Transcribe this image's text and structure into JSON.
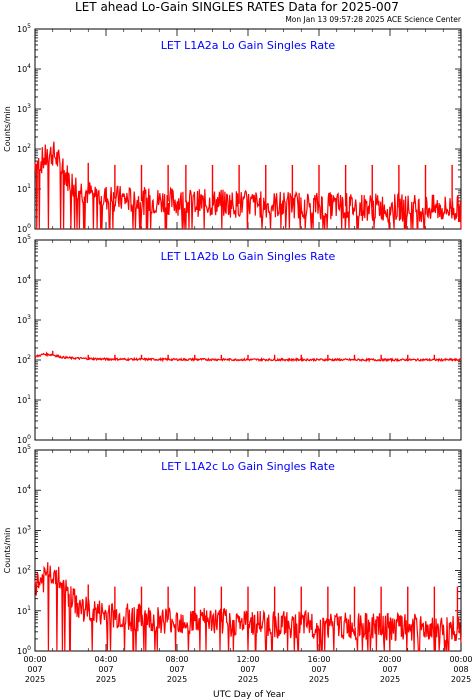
{
  "header": {
    "title": "LET ahead Lo-Gain SINGLES RATES Data for 2025-007",
    "timestamp": "Mon Jan 13 09:57:28 2025 ACE Science Center"
  },
  "colors": {
    "series": "#ff0000",
    "panel_title": "#0000ff",
    "axis": "#000000"
  },
  "chart_data": [
    {
      "type": "line",
      "title": "LET L1A2a Lo Gain Singles Rate",
      "ylabel": "Counts/min",
      "yscale": "log",
      "ylim": [
        1,
        100000
      ],
      "ytick_labels": [
        {
          "base": "10",
          "exp": "0",
          "value": 1
        },
        {
          "base": "10",
          "exp": "1",
          "value": 10
        },
        {
          "base": "10",
          "exp": "2",
          "value": 100
        },
        {
          "base": "10",
          "exp": "3",
          "value": 1000
        },
        {
          "base": "10",
          "exp": "4",
          "value": 10000
        },
        {
          "base": "10",
          "exp": "5",
          "value": 100000
        }
      ],
      "series": [
        {
          "x_hours": [
            0.0,
            0.5,
            1.0,
            1.5,
            2.0,
            2.5,
            3.0,
            4.0,
            5.0,
            6.0,
            7.0,
            8.0,
            9.0,
            10.0,
            11.0,
            12.0,
            13.0,
            14.0,
            15.0,
            16.0,
            17.0,
            18.0,
            19.0,
            20.0,
            21.0,
            22.0,
            23.0,
            24.0
          ],
          "values": [
            40,
            55,
            80,
            30,
            15,
            10,
            8,
            6,
            5.5,
            5,
            5,
            4.8,
            4.5,
            4.5,
            4.3,
            4.2,
            4,
            4,
            4,
            3.8,
            3.8,
            3.6,
            3.5,
            3.5,
            3.4,
            3.3,
            3.2,
            3.2
          ],
          "spike_hours": [
            3.0,
            4.5,
            6.0,
            7.5,
            8.5,
            10.0,
            11.5,
            13.0,
            14.5,
            16.0,
            17.5,
            19.0,
            20.5,
            22.0,
            23.5
          ],
          "spike_values": [
            45,
            40,
            40,
            40,
            40,
            40,
            40,
            40,
            40,
            40,
            40,
            40,
            40,
            40,
            40
          ]
        }
      ]
    },
    {
      "type": "line",
      "title": "LET L1A2b Lo Gain Singles Rate",
      "ylabel": "",
      "yscale": "log",
      "ylim": [
        1,
        100000
      ],
      "ytick_labels": [
        {
          "base": "10",
          "exp": "0",
          "value": 1
        },
        {
          "base": "10",
          "exp": "1",
          "value": 10
        },
        {
          "base": "10",
          "exp": "2",
          "value": 100
        },
        {
          "base": "10",
          "exp": "3",
          "value": 1000
        },
        {
          "base": "10",
          "exp": "4",
          "value": 10000
        },
        {
          "base": "10",
          "exp": "5",
          "value": 100000
        }
      ],
      "series": [
        {
          "x_hours": [
            0.0,
            0.5,
            1.0,
            1.5,
            2.0,
            3.0,
            4.0,
            6.0,
            8.0,
            10.0,
            12.0,
            14.0,
            16.0,
            18.0,
            20.0,
            22.0,
            24.0
          ],
          "values": [
            120,
            140,
            135,
            118,
            112,
            108,
            105,
            104,
            103,
            103,
            102,
            102,
            102,
            101,
            101,
            101,
            101
          ],
          "spike_hours": [
            1.0,
            3.0,
            4.5,
            6.0,
            7.5,
            9.0,
            10.5,
            12.0,
            13.5,
            15.0,
            16.5,
            18.0,
            19.5,
            21.0,
            22.5
          ],
          "spike_values": [
            170,
            135,
            135,
            135,
            135,
            135,
            135,
            135,
            135,
            135,
            135,
            135,
            135,
            135,
            135
          ]
        }
      ]
    },
    {
      "type": "line",
      "title": "LET L1A2c Lo Gain Singles Rate",
      "ylabel": "Counts/min",
      "xlabel": "UTC Day of Year",
      "yscale": "log",
      "ylim": [
        1,
        100000
      ],
      "ytick_labels": [
        {
          "base": "10",
          "exp": "0",
          "value": 1
        },
        {
          "base": "10",
          "exp": "1",
          "value": 10
        },
        {
          "base": "10",
          "exp": "2",
          "value": 100
        },
        {
          "base": "10",
          "exp": "3",
          "value": 1000
        },
        {
          "base": "10",
          "exp": "4",
          "value": 10000
        },
        {
          "base": "10",
          "exp": "5",
          "value": 100000
        }
      ],
      "series": [
        {
          "x_hours": [
            0.0,
            0.5,
            1.0,
            1.5,
            2.0,
            2.5,
            3.0,
            4.0,
            5.0,
            6.0,
            7.0,
            8.0,
            9.0,
            10.0,
            11.0,
            12.0,
            13.0,
            14.0,
            15.0,
            16.0,
            17.0,
            18.0,
            19.0,
            20.0,
            21.0,
            22.0,
            23.0,
            24.0
          ],
          "values": [
            50,
            60,
            95,
            40,
            20,
            12,
            10,
            8,
            7,
            6.5,
            6,
            6,
            5.5,
            5.5,
            5,
            5,
            4.8,
            4.5,
            4.5,
            4.3,
            4.2,
            4,
            4,
            3.8,
            3.8,
            3.6,
            3.5,
            3.5
          ],
          "spike_hours": [
            3.0,
            4.5,
            6.0,
            7.5,
            9.0,
            10.5,
            12.0,
            13.5,
            15.0,
            16.5,
            18.0,
            19.5,
            21.0,
            22.5,
            23.8
          ],
          "spike_values": [
            45,
            40,
            40,
            40,
            40,
            40,
            40,
            40,
            40,
            40,
            40,
            40,
            40,
            40,
            40
          ]
        }
      ]
    }
  ],
  "x_axis": {
    "xlabel": "UTC Day of Year",
    "range_hours": [
      0,
      24
    ],
    "ticks": [
      {
        "hours": 0,
        "time": "00:00",
        "doy": "007",
        "year": "2025"
      },
      {
        "hours": 4,
        "time": "04:00",
        "doy": "007",
        "year": "2025"
      },
      {
        "hours": 8,
        "time": "08:00",
        "doy": "007",
        "year": "2025"
      },
      {
        "hours": 12,
        "time": "12:00",
        "doy": "007",
        "year": "2025"
      },
      {
        "hours": 16,
        "time": "16:00",
        "doy": "007",
        "year": "2025"
      },
      {
        "hours": 20,
        "time": "20:00",
        "doy": "007",
        "year": "2025"
      },
      {
        "hours": 24,
        "time": "00:00",
        "doy": "008",
        "year": "2025"
      }
    ]
  }
}
